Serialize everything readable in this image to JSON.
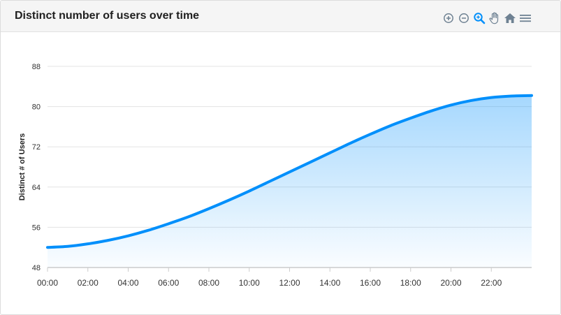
{
  "header": {
    "title": "Distinct number of users over time"
  },
  "toolbar": {
    "tools": [
      {
        "name": "zoom-in-icon",
        "title": "Zoom in"
      },
      {
        "name": "zoom-out-icon",
        "title": "Zoom out"
      },
      {
        "name": "selection-zoom-icon",
        "title": "Selection zoom"
      },
      {
        "name": "pan-icon",
        "title": "Panning"
      },
      {
        "name": "reset-zoom-icon",
        "title": "Reset zoom"
      },
      {
        "name": "menu-icon",
        "title": "Menu"
      }
    ],
    "active_color": "#008ffb",
    "icon_color": "#6e8192"
  },
  "colors": {
    "series": "#008ffb",
    "grid": "#e3e3e3",
    "axis": "#cccccc"
  },
  "chart_data": {
    "type": "area",
    "title": "Distinct number of users over time",
    "ylabel": "Distinct # of Users",
    "xlabel": "",
    "ylim": [
      48,
      88
    ],
    "yticks": [
      "48",
      "56",
      "64",
      "72",
      "80",
      "88"
    ],
    "xlim": [
      "00:00",
      "24:00"
    ],
    "xticks": [
      "00:00",
      "02:00",
      "04:00",
      "06:00",
      "08:00",
      "10:00",
      "12:00",
      "14:00",
      "16:00",
      "18:00",
      "20:00",
      "22:00"
    ],
    "grid": true,
    "series": [
      {
        "x": [
          "00:00",
          "01:00",
          "02:00",
          "03:00",
          "04:00",
          "05:00",
          "06:00",
          "07:00",
          "08:00",
          "09:00",
          "10:00",
          "11:00",
          "12:00",
          "13:00",
          "14:00",
          "15:00",
          "16:00",
          "17:00",
          "18:00",
          "19:00",
          "20:00",
          "21:00",
          "22:00",
          "23:00",
          "24:00"
        ],
        "values": [
          52,
          52.2,
          52.7,
          53.4,
          54.3,
          55.4,
          56.7,
          58.1,
          59.7,
          61.4,
          63.2,
          65.1,
          67,
          68.9,
          70.8,
          72.7,
          74.5,
          76.2,
          77.7,
          79.1,
          80.3,
          81.2,
          81.8,
          82.1,
          82.2
        ]
      }
    ]
  }
}
